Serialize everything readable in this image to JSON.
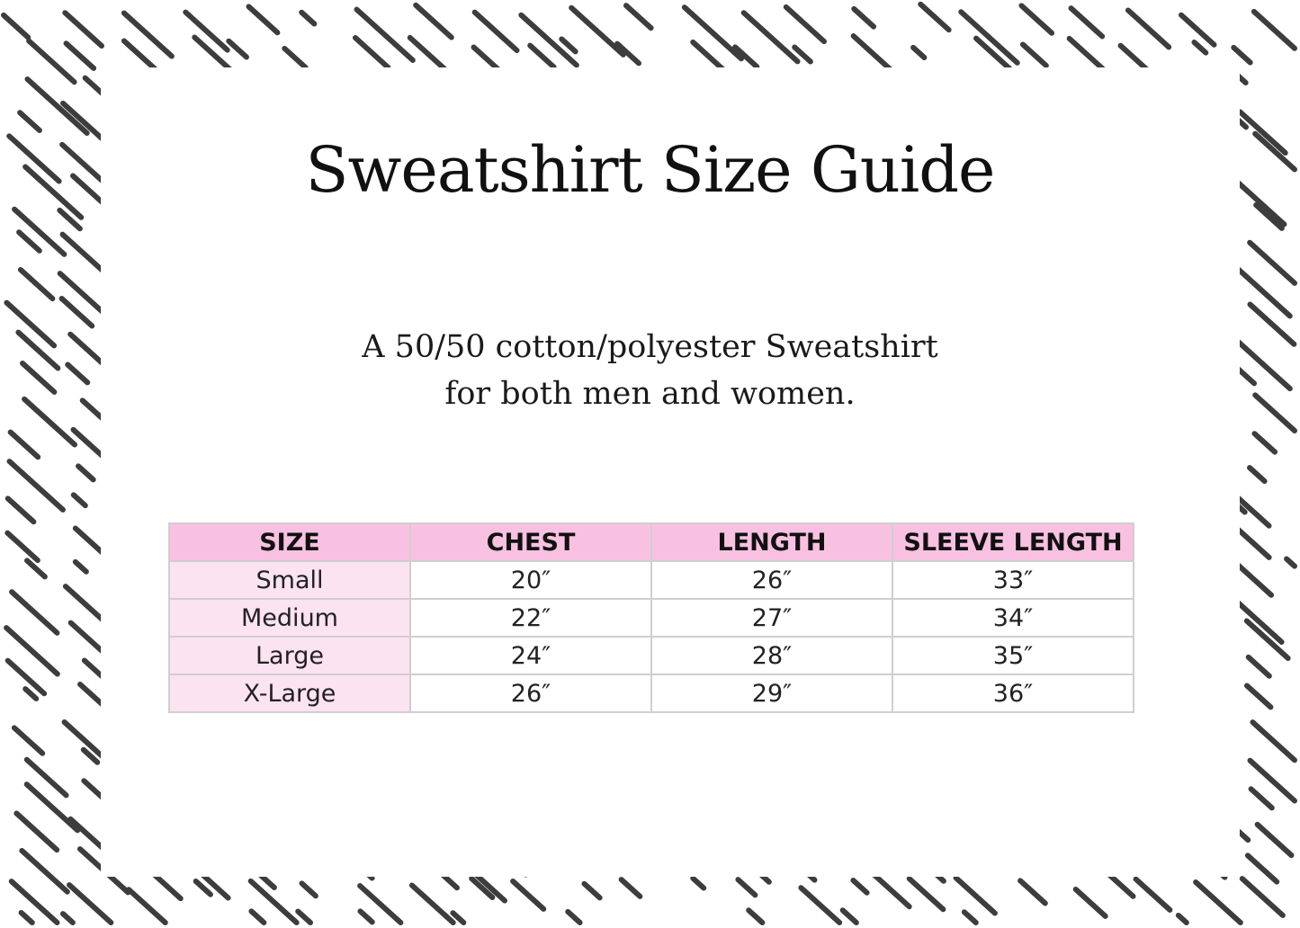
{
  "title": "Sweatshirt Size Guide",
  "subtitle_lines": [
    "A 50/50 cotton/polyester Sweatshirt",
    "for both men and women."
  ],
  "table": {
    "headers": [
      "SIZE",
      "CHEST",
      "LENGTH",
      "SLEEVE LENGTH"
    ],
    "rows": [
      [
        "Small",
        "20″",
        "26″",
        "33″"
      ],
      [
        "Medium",
        "22″",
        "27″",
        "34″"
      ],
      [
        "Large",
        "24″",
        "28″",
        "35″"
      ],
      [
        "X-Large",
        "26″",
        "29″",
        "36″"
      ]
    ]
  },
  "colors": {
    "header_bg": "#f9c1e1",
    "size_col_bg": "#fce3f1",
    "pattern": "#3d3d3d"
  }
}
